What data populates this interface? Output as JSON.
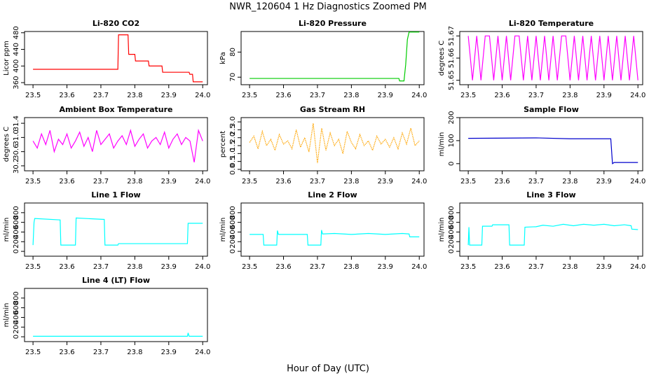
{
  "page": {
    "title": "NWR_120604  1 Hz Diagnostics Zoomed PM",
    "x_label": "Hour of Day (UTC)"
  },
  "chart_data": [
    {
      "type": "line",
      "title": "Li-820 CO2",
      "y_label": "Licor ppm",
      "color": "#ff0000",
      "x": [
        23.5,
        23.75,
        23.752,
        23.78,
        23.782,
        23.8,
        23.802,
        23.84,
        23.842,
        23.88,
        23.882,
        23.96,
        23.962,
        23.97,
        23.972,
        24.0
      ],
      "values": [
        392,
        392,
        475,
        475,
        428,
        428,
        412,
        412,
        400,
        400,
        385,
        385,
        380,
        380,
        362,
        362
      ],
      "xlim": [
        23.475,
        24.014
      ],
      "ylim": [
        355,
        483
      ],
      "xticks": [
        23.5,
        23.6,
        23.7,
        23.8,
        23.9,
        {
          "value": 24,
          "label": "24.0"
        }
      ],
      "yticks": [
        360,
        400,
        440,
        480
      ]
    },
    {
      "type": "line",
      "title": "Li-820 Pressure",
      "y_label": "kPa",
      "color": "#00cc00",
      "x": [
        23.5,
        23.94,
        23.942,
        23.955,
        23.96,
        23.965,
        23.97,
        24.0
      ],
      "values": [
        69.5,
        69.5,
        68.5,
        68.5,
        75,
        85,
        88,
        88
      ],
      "xlim": [
        23.475,
        24.014
      ],
      "ylim": [
        67,
        88.2
      ],
      "xticks": [
        23.5,
        23.6,
        23.7,
        23.8,
        23.9,
        {
          "value": 24,
          "label": "24.0"
        }
      ],
      "yticks": [
        70,
        80
      ]
    },
    {
      "type": "line",
      "title": "Li-820 Temperature",
      "y_label": "degrees C",
      "color": "#ff00ff",
      "x": [
        23.5,
        23.5125,
        23.525,
        23.5375,
        23.55,
        23.5625,
        23.575,
        23.5875,
        23.6,
        23.6125,
        23.625,
        23.6375,
        23.65,
        23.6625,
        23.675,
        23.6875,
        23.7,
        23.7125,
        23.725,
        23.7375,
        23.75,
        23.7625,
        23.775,
        23.7875,
        23.8,
        23.8125,
        23.825,
        23.8375,
        23.85,
        23.8625,
        23.875,
        23.8875,
        23.9,
        23.9125,
        23.925,
        23.9375,
        23.95,
        23.9625,
        23.975,
        23.9875,
        24.0
      ],
      "values": [
        51.67,
        51.65,
        51.67,
        51.65,
        51.67,
        51.67,
        51.65,
        51.67,
        51.65,
        51.67,
        51.65,
        51.67,
        51.67,
        51.65,
        51.67,
        51.65,
        51.67,
        51.65,
        51.67,
        51.65,
        51.67,
        51.65,
        51.67,
        51.67,
        51.65,
        51.67,
        51.65,
        51.67,
        51.65,
        51.67,
        51.65,
        51.67,
        51.65,
        51.67,
        51.65,
        51.67,
        51.65,
        51.67,
        51.65,
        51.67,
        51.65
      ],
      "xlim": [
        23.475,
        24.014
      ],
      "ylim": [
        51.648,
        51.672
      ],
      "xticks": [
        23.5,
        23.6,
        23.7,
        23.8,
        23.9,
        {
          "value": 24,
          "label": "24.0"
        }
      ],
      "yticks": [
        51.65,
        51.66,
        51.67
      ]
    },
    {
      "type": "line",
      "title": "Ambient Box Temperature",
      "y_label": "degrees C",
      "color": "#ff00ff",
      "x": [
        23.5,
        23.5125,
        23.525,
        23.5375,
        23.55,
        23.5625,
        23.575,
        23.5875,
        23.6,
        23.6125,
        23.625,
        23.6375,
        23.65,
        23.6625,
        23.675,
        23.6875,
        23.7,
        23.7125,
        23.725,
        23.7375,
        23.75,
        23.7625,
        23.775,
        23.7875,
        23.8,
        23.8125,
        23.825,
        23.8375,
        23.85,
        23.8625,
        23.875,
        23.8875,
        23.9,
        23.9125,
        23.925,
        23.9375,
        23.95,
        23.9625,
        23.975,
        23.9875,
        24.0
      ],
      "values": [
        30.9,
        30.7,
        31.1,
        30.8,
        31.2,
        30.6,
        30.95,
        30.8,
        31.1,
        30.7,
        30.9,
        31.15,
        30.75,
        31.0,
        30.6,
        31.2,
        30.8,
        30.95,
        31.1,
        30.7,
        30.9,
        31.05,
        30.8,
        31.2,
        30.75,
        30.95,
        31.1,
        30.7,
        30.9,
        31.0,
        30.8,
        31.15,
        30.7,
        30.95,
        31.1,
        30.8,
        31.0,
        30.9,
        30.3,
        31.2,
        30.9
      ],
      "xlim": [
        23.475,
        24.014
      ],
      "ylim": [
        30.06,
        31.56
      ],
      "xticks": [
        23.5,
        23.6,
        23.7,
        23.8,
        23.9,
        {
          "value": 24,
          "label": "24.0"
        }
      ],
      "yticks": [
        30.2,
        30.6,
        {
          "value": 31,
          "label": "31.0"
        },
        31.4
      ]
    },
    {
      "type": "line",
      "title": "Gas Stream RH",
      "y_label": "percent",
      "color": "#ffa500",
      "dotted": true,
      "x": [
        23.5,
        23.5125,
        23.525,
        23.5375,
        23.55,
        23.5625,
        23.575,
        23.5875,
        23.6,
        23.6125,
        23.625,
        23.6375,
        23.65,
        23.6625,
        23.675,
        23.6875,
        23.7,
        23.7125,
        23.725,
        23.7375,
        23.75,
        23.7625,
        23.775,
        23.7875,
        23.8,
        23.8125,
        23.825,
        23.8375,
        23.85,
        23.8625,
        23.875,
        23.8875,
        23.9,
        23.9125,
        23.925,
        23.9375,
        23.95,
        23.9625,
        23.975,
        23.9875,
        24.0
      ],
      "values": [
        1.7,
        2.1,
        1.3,
        2.4,
        1.5,
        1.9,
        1.2,
        2.2,
        1.6,
        1.8,
        1.3,
        2.5,
        1.4,
        2.0,
        1.1,
        2.9,
        0.4,
        2.6,
        1.2,
        2.3,
        1.5,
        1.9,
        1.0,
        2.4,
        1.7,
        1.3,
        2.2,
        1.5,
        1.8,
        1.2,
        2.1,
        1.6,
        1.9,
        1.4,
        2.0,
        1.3,
        2.3,
        1.6,
        2.6,
        1.5,
        1.8
      ],
      "xlim": [
        23.475,
        24.014
      ],
      "ylim": [
        -0.09,
        3.27
      ],
      "xticks": [
        23.5,
        23.6,
        23.7,
        23.8,
        23.9,
        {
          "value": 24,
          "label": "24.0"
        }
      ],
      "yticks": [
        {
          "value": 0,
          "label": "0.0"
        },
        0.5,
        {
          "value": 1,
          "label": "1.0"
        },
        1.5,
        {
          "value": 2,
          "label": "2.0"
        },
        2.5,
        {
          "value": 3,
          "label": "3.0"
        }
      ]
    },
    {
      "type": "line",
      "title": "Sample Flow",
      "y_label": "ml/min",
      "color": "#0000cd",
      "x": [
        23.5,
        23.7,
        23.8,
        23.92,
        23.925,
        23.93,
        24.0
      ],
      "values": [
        110,
        112,
        108,
        108,
        0,
        5,
        5
      ],
      "xlim": [
        23.475,
        24.014
      ],
      "ylim": [
        -31,
        200
      ],
      "xticks": [
        23.5,
        23.6,
        23.7,
        23.8,
        23.9,
        {
          "value": 24,
          "label": "24.0"
        }
      ],
      "yticks": [
        0,
        100,
        200
      ]
    },
    {
      "type": "line",
      "title": "Line 1 Flow",
      "y_label": "ml/min",
      "color": "#00ffff",
      "x": [
        23.5,
        23.503,
        23.505,
        23.58,
        23.582,
        23.625,
        23.627,
        23.71,
        23.712,
        23.75,
        23.752,
        23.955,
        23.957,
        24.0
      ],
      "values": [
        130,
        600,
        680,
        650,
        130,
        130,
        690,
        660,
        130,
        130,
        160,
        160,
        580,
        580
      ],
      "xlim": [
        23.475,
        24.014
      ],
      "ylim": [
        -100,
        1000
      ],
      "xticks": [
        23.5,
        23.6,
        23.7,
        23.8,
        23.9,
        {
          "value": 24,
          "label": "24.0"
        }
      ],
      "yticks": [
        0,
        200,
        400,
        600,
        800
      ]
    },
    {
      "type": "line",
      "title": "Line 2 Flow",
      "y_label": "ml/min",
      "color": "#00ffff",
      "x": [
        23.5,
        23.54,
        23.542,
        23.58,
        23.582,
        23.585,
        23.67,
        23.672,
        23.71,
        23.712,
        23.715,
        23.75,
        23.8,
        23.85,
        23.9,
        23.95,
        23.97,
        23.972,
        24.0
      ],
      "values": [
        350,
        350,
        130,
        130,
        430,
        350,
        350,
        130,
        130,
        440,
        360,
        370,
        350,
        370,
        350,
        370,
        360,
        300,
        300
      ],
      "xlim": [
        23.475,
        24.014
      ],
      "ylim": [
        -100,
        1000
      ],
      "xticks": [
        23.5,
        23.6,
        23.7,
        23.8,
        23.9,
        {
          "value": 24,
          "label": "24.0"
        }
      ],
      "yticks": [
        0,
        200,
        400,
        600,
        800
      ]
    },
    {
      "type": "line",
      "title": "Line 3 Flow",
      "y_label": "ml/min",
      "color": "#00ffff",
      "x": [
        23.5,
        23.502,
        23.504,
        23.54,
        23.542,
        23.57,
        23.572,
        23.62,
        23.622,
        23.665,
        23.667,
        23.7,
        23.72,
        23.75,
        23.78,
        23.81,
        23.84,
        23.87,
        23.9,
        23.93,
        23.96,
        23.98,
        23.982,
        24.0
      ],
      "values": [
        130,
        500,
        130,
        130,
        520,
        520,
        550,
        550,
        130,
        130,
        500,
        510,
        540,
        520,
        560,
        530,
        560,
        540,
        560,
        530,
        550,
        530,
        460,
        450
      ],
      "xlim": [
        23.475,
        24.014
      ],
      "ylim": [
        -100,
        1000
      ],
      "xticks": [
        23.5,
        23.6,
        23.7,
        23.8,
        23.9,
        {
          "value": 24,
          "label": "24.0"
        }
      ],
      "yticks": [
        0,
        200,
        400,
        600,
        800
      ]
    },
    {
      "type": "line",
      "title": "Line 4 (LT) Flow",
      "y_label": "ml/min",
      "color": "#00ffff",
      "x": [
        23.5,
        23.955,
        23.957,
        23.96,
        23.962,
        24.0
      ],
      "values": [
        10,
        10,
        80,
        10,
        10,
        10
      ],
      "xlim": [
        23.475,
        24.014
      ],
      "ylim": [
        -100,
        1000
      ],
      "xticks": [
        23.5,
        23.6,
        23.7,
        23.8,
        23.9,
        {
          "value": 24,
          "label": "24.0"
        }
      ],
      "yticks": [
        0,
        200,
        400,
        600,
        800
      ]
    }
  ]
}
